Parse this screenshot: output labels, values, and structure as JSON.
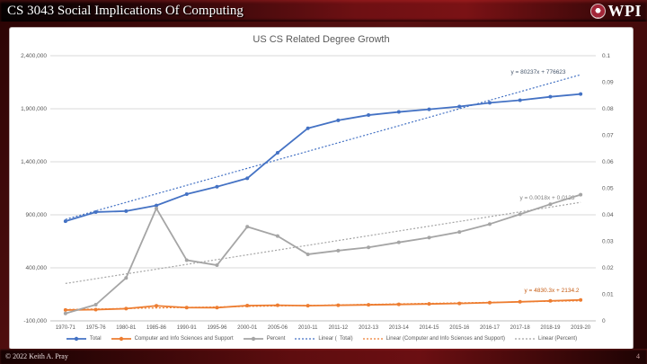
{
  "header": {
    "title": "CS 3043 Social Implications Of Computing",
    "logo_text": "WPI"
  },
  "footer": {
    "copyright": "© 2022 Keith A. Pray",
    "page_number": "4"
  },
  "chart_data": {
    "type": "line",
    "title": "US CS Related Degree Growth",
    "grid": true,
    "legend_position": "bottom",
    "categories": [
      "1970-71",
      "1975-76",
      "1980-81",
      "1985-86",
      "1990-91",
      "1995-96",
      "2000-01",
      "2005-06",
      "2010-11",
      "2011-12",
      "2012-13",
      "2013-14",
      "2014-15",
      "2015-16",
      "2016-17",
      "2017-18",
      "2018-19",
      "2019-20"
    ],
    "series": [
      {
        "name": "Total",
        "axis": "left",
        "color": "#4472C4",
        "values": [
          839730,
          925746,
          935140,
          987823,
          1094538,
          1164792,
          1244171,
          1485242,
          1715913,
          1791046,
          1840164,
          1869814,
          1894934,
          1920718,
          1956032,
          1980644,
          2012854,
          2038431
        ]
      },
      {
        "name": "Computer and Info Sciences and Support",
        "axis": "left",
        "color": "#ED7D31",
        "values": [
          2388,
          5652,
          15121,
          41889,
          25083,
          24506,
          44142,
          47480,
          43072,
          47384,
          50962,
          55367,
          59581,
          64405,
          71420,
          79598,
          88633,
          97047
        ]
      },
      {
        "name": "Percent",
        "axis": "right",
        "color": "#A5A5A5",
        "values": [
          0.0028,
          0.0061,
          0.0162,
          0.0424,
          0.0229,
          0.021,
          0.0355,
          0.032,
          0.0251,
          0.0265,
          0.0277,
          0.0296,
          0.0314,
          0.0335,
          0.0365,
          0.0402,
          0.044,
          0.0476
        ]
      }
    ],
    "trendlines": [
      {
        "name": "Linear (  Total)",
        "axis": "left",
        "color": "#4472C4",
        "slope": 80237,
        "intercept": 776623,
        "equation": "y = 80237x + 776623",
        "equation_color": "#44546A"
      },
      {
        "name": "Linear (Computer and Info Sciences and Support)",
        "axis": "left",
        "color": "#ED7D31",
        "slope": 4830.3,
        "intercept": 2134.2,
        "equation": "y = 4830.3x + 2134.2",
        "equation_color": "#C55A11"
      },
      {
        "name": "Linear (Percent)",
        "axis": "right",
        "color": "#A5A5A5",
        "slope": 0.0018,
        "intercept": 0.0123,
        "equation": "y = 0.0018x + 0.0123",
        "equation_color": "#7F7F7F"
      }
    ],
    "left_axis": {
      "min": -100000,
      "max": 2400000,
      "step": 500000,
      "tick_values": [
        2400000,
        1900000,
        1400000,
        900000,
        400000,
        -100000
      ],
      "tick_labels": [
        "2,400,000",
        "1,900,000",
        "1,400,000",
        "900,000",
        "400,000",
        "-100,000"
      ]
    },
    "right_axis": {
      "min": 0,
      "max": 0.1,
      "step": 0.01,
      "tick_values": [
        0.1,
        0.09,
        0.08,
        0.07,
        0.06,
        0.05,
        0.04,
        0.03,
        0.02,
        0.01,
        0
      ],
      "tick_labels": [
        "0.1",
        "0.09",
        "0.08",
        "0.07",
        "0.06",
        "0.05",
        "0.04",
        "0.03",
        "0.02",
        "0.01",
        "0"
      ]
    }
  }
}
